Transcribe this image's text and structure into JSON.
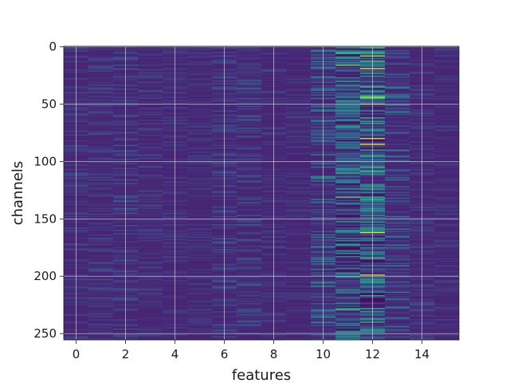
{
  "chart_data": {
    "type": "heatmap",
    "title": "",
    "xlabel": "features",
    "ylabel": "channels",
    "xlim": [
      -0.5,
      15.5
    ],
    "ylim": [
      255.5,
      -0.5
    ],
    "y_inverted": true,
    "n_features": 16,
    "n_channels": 256,
    "colormap": "viridis",
    "grid": true,
    "xticks": [
      0,
      2,
      4,
      6,
      8,
      10,
      12,
      14
    ],
    "yticks": [
      0,
      50,
      100,
      150,
      200,
      250
    ],
    "column_activity": [
      0.08,
      0.1,
      0.12,
      0.08,
      0.06,
      0.06,
      0.1,
      0.12,
      0.07,
      0.06,
      0.22,
      0.62,
      0.75,
      0.22,
      0.08,
      0.06
    ],
    "highlights": [
      {
        "feature": 11,
        "channel": 5,
        "value": 0.7
      },
      {
        "feature": 11,
        "channel": 10,
        "value": 0.55
      },
      {
        "feature": 11,
        "channel": 16,
        "value": 0.8
      },
      {
        "feature": 11,
        "channel": 30,
        "value": 0.6
      },
      {
        "feature": 11,
        "channel": 110,
        "value": 0.65
      },
      {
        "feature": 11,
        "channel": 131,
        "value": 0.75
      },
      {
        "feature": 11,
        "channel": 229,
        "value": 0.7
      },
      {
        "feature": 12,
        "channel": 8,
        "value": 0.85
      },
      {
        "feature": 12,
        "channel": 19,
        "value": 0.95
      },
      {
        "feature": 12,
        "channel": 44,
        "value": 0.9
      },
      {
        "feature": 12,
        "channel": 50,
        "value": 0.85
      },
      {
        "feature": 12,
        "channel": 80,
        "value": 0.9
      },
      {
        "feature": 12,
        "channel": 85,
        "value": 0.95
      },
      {
        "feature": 12,
        "channel": 162,
        "value": 0.95
      },
      {
        "feature": 12,
        "channel": 199,
        "value": 0.9
      },
      {
        "feature": 12,
        "channel": 231,
        "value": 0.6
      }
    ],
    "colors": {
      "grid": "#d0d0d0",
      "background": "#440154"
    }
  }
}
